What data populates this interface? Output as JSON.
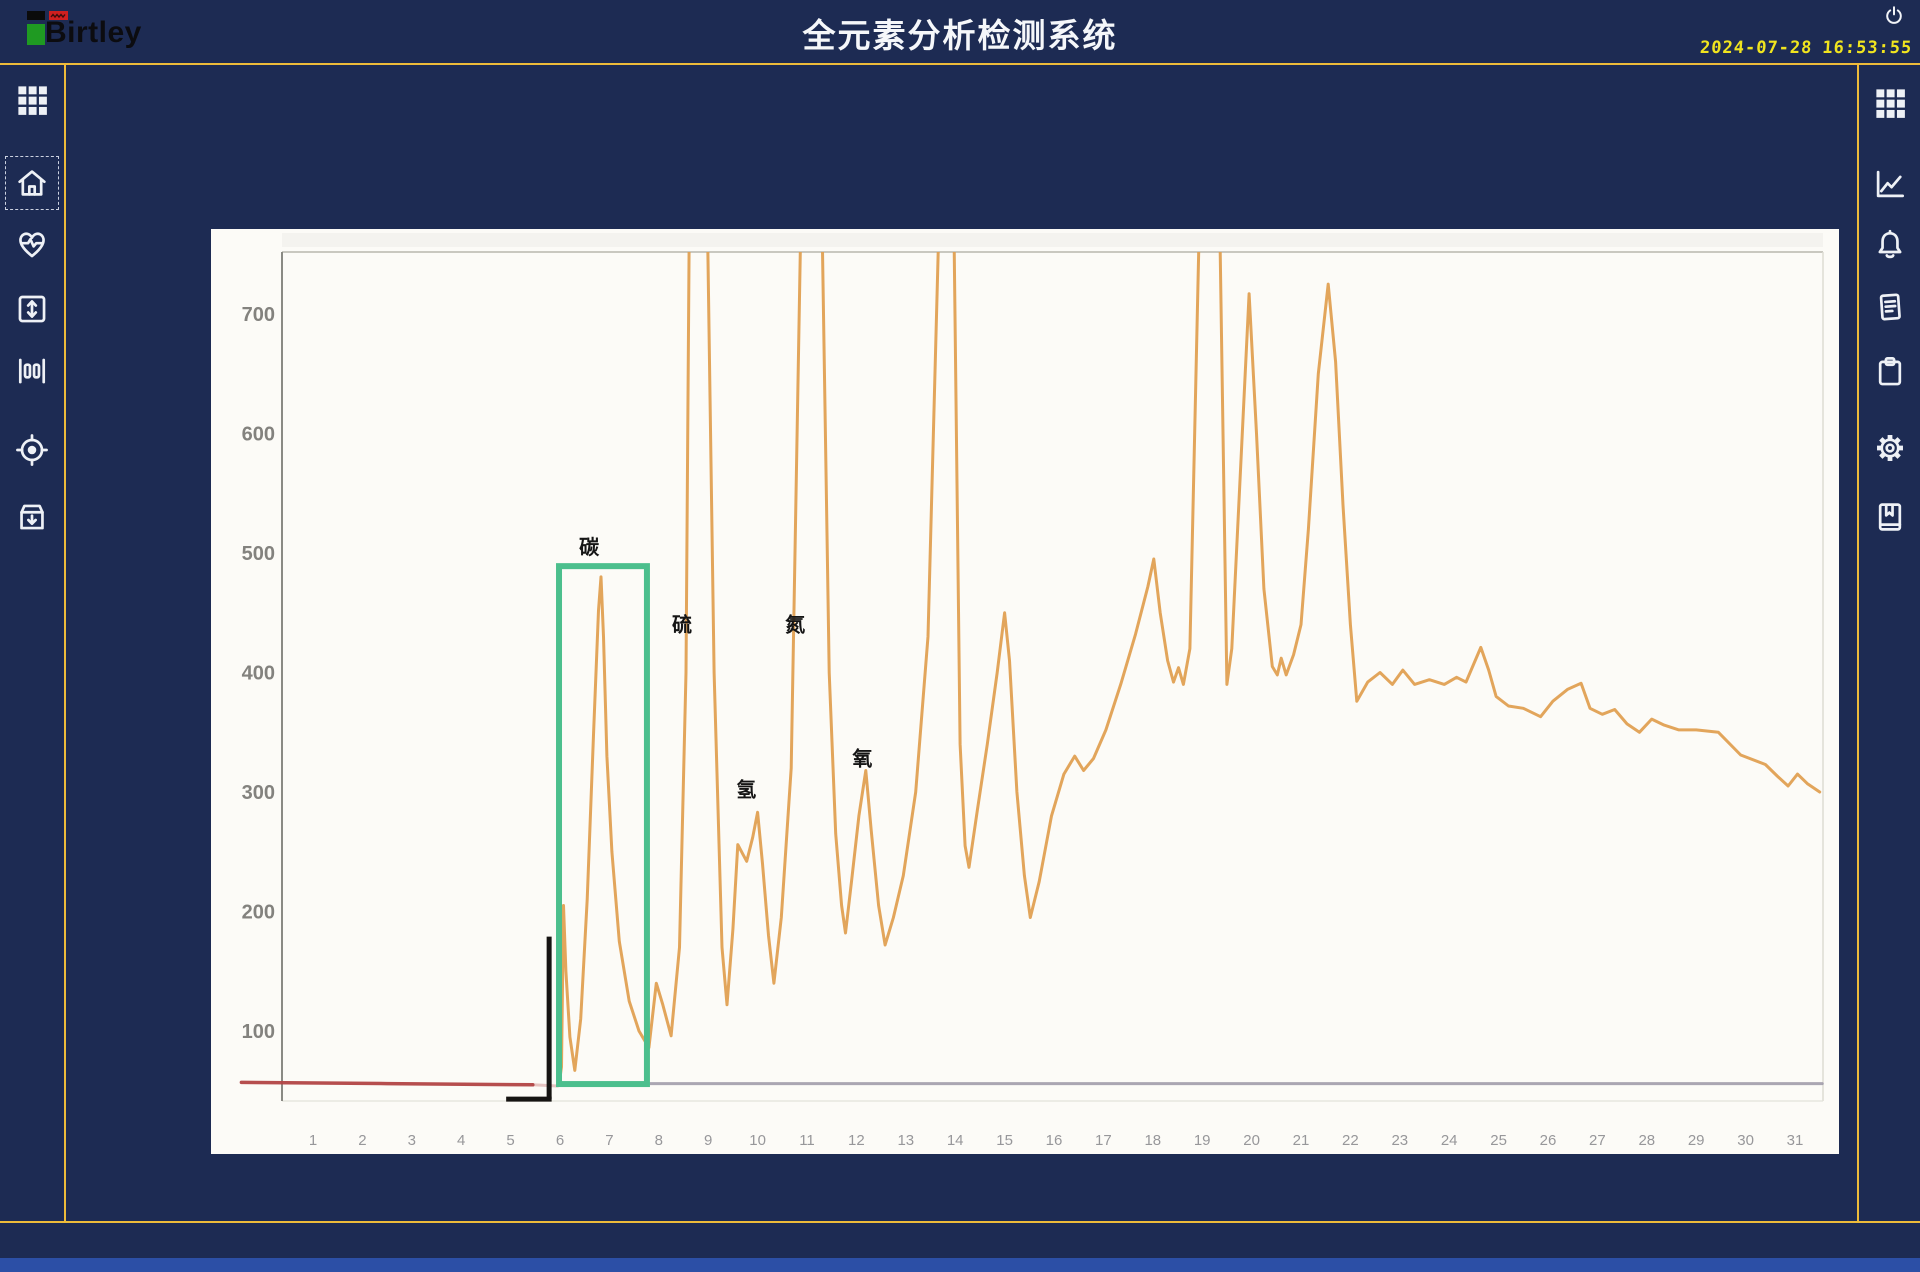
{
  "header": {
    "logo_text": "Birtley",
    "title": "全元素分析检测系统",
    "date": "2024-07-28",
    "time": "16:53:55"
  },
  "left_sidebar": {
    "items": [
      {
        "icon": "grid-menu"
      },
      {
        "icon": "home",
        "active": true
      },
      {
        "icon": "heart-pulse"
      },
      {
        "icon": "expand-vertical"
      },
      {
        "icon": "columns"
      },
      {
        "icon": "target"
      },
      {
        "icon": "archive-in"
      }
    ]
  },
  "right_sidebar": {
    "items": [
      {
        "icon": "grid-menu"
      },
      {
        "icon": "line-chart"
      },
      {
        "icon": "bell"
      },
      {
        "icon": "report"
      },
      {
        "icon": "clipboard"
      },
      {
        "icon": "gear"
      },
      {
        "icon": "book-bookmark"
      }
    ]
  },
  "chart_data": {
    "type": "line",
    "title": "",
    "xlabel": "",
    "ylabel": "",
    "x_ticks": [
      1,
      2,
      3,
      4,
      5,
      6,
      7,
      8,
      9,
      10,
      11,
      12,
      13,
      14,
      15,
      16,
      17,
      18,
      19,
      20,
      21,
      22,
      23,
      24,
      25,
      26,
      27,
      28,
      29,
      30,
      31
    ],
    "y_ticks": [
      100,
      200,
      300,
      400,
      500,
      600,
      700
    ],
    "xlim": [
      0.37,
      31.56
    ],
    "ylim": [
      41,
      752
    ],
    "grid": false,
    "legend": "none",
    "note": "scanned chromatogram; peaks at x≈8.8, 11.1, 13.8, 19.2 are clipped above the 700 axis (stored as 790)",
    "colors": {
      "signal": "#e0a052",
      "baseline_red": "#b24444",
      "baseline_gray": "#9b97a6"
    },
    "series": [
      {
        "name": "baseline-left-red",
        "color": "#b24444",
        "width": 3.5,
        "opacity": 0.95,
        "points": [
          [
            -0.45,
            57
          ],
          [
            2.5,
            56
          ],
          [
            5.45,
            55
          ]
        ]
      },
      {
        "name": "baseline-left-red-fade",
        "color": "#b24444",
        "width": 3,
        "opacity": 0.3,
        "points": [
          [
            5.45,
            55
          ],
          [
            5.95,
            54
          ]
        ]
      },
      {
        "name": "baseline-right-gray",
        "color": "#9b97a6",
        "width": 3,
        "opacity": 0.85,
        "points": [
          [
            7.78,
            56
          ],
          [
            31.55,
            56
          ]
        ]
      },
      {
        "name": "signal",
        "color": "#e0a052",
        "width": 3,
        "opacity": 0.95,
        "points": [
          [
            5.98,
            55
          ],
          [
            6.03,
            70
          ],
          [
            6.07,
            205
          ],
          [
            6.12,
            150
          ],
          [
            6.2,
            95
          ],
          [
            6.3,
            67
          ],
          [
            6.42,
            110
          ],
          [
            6.55,
            210
          ],
          [
            6.68,
            350
          ],
          [
            6.78,
            452
          ],
          [
            6.83,
            480
          ],
          [
            6.88,
            430
          ],
          [
            6.95,
            330
          ],
          [
            7.05,
            250
          ],
          [
            7.2,
            175
          ],
          [
            7.4,
            125
          ],
          [
            7.6,
            100
          ],
          [
            7.8,
            86
          ],
          [
            7.95,
            140
          ],
          [
            8.08,
            122
          ],
          [
            8.25,
            96
          ],
          [
            8.42,
            170
          ],
          [
            8.55,
            400
          ],
          [
            8.62,
            790
          ],
          [
            8.98,
            790
          ],
          [
            9.12,
            400
          ],
          [
            9.28,
            170
          ],
          [
            9.38,
            122
          ],
          [
            9.5,
            185
          ],
          [
            9.6,
            256
          ],
          [
            9.7,
            248
          ],
          [
            9.78,
            242
          ],
          [
            9.9,
            262
          ],
          [
            10.0,
            283
          ],
          [
            10.1,
            240
          ],
          [
            10.22,
            180
          ],
          [
            10.33,
            140
          ],
          [
            10.48,
            195
          ],
          [
            10.68,
            320
          ],
          [
            10.88,
            790
          ],
          [
            11.3,
            790
          ],
          [
            11.45,
            400
          ],
          [
            11.58,
            265
          ],
          [
            11.7,
            205
          ],
          [
            11.78,
            182
          ],
          [
            11.9,
            225
          ],
          [
            12.05,
            280
          ],
          [
            12.19,
            318
          ],
          [
            12.3,
            268
          ],
          [
            12.45,
            205
          ],
          [
            12.58,
            172
          ],
          [
            12.75,
            195
          ],
          [
            12.95,
            230
          ],
          [
            13.2,
            300
          ],
          [
            13.45,
            430
          ],
          [
            13.68,
            790
          ],
          [
            13.97,
            790
          ],
          [
            14.1,
            340
          ],
          [
            14.2,
            255
          ],
          [
            14.28,
            237
          ],
          [
            14.45,
            285
          ],
          [
            14.65,
            340
          ],
          [
            14.85,
            400
          ],
          [
            15.0,
            450
          ],
          [
            15.1,
            410
          ],
          [
            15.25,
            300
          ],
          [
            15.4,
            230
          ],
          [
            15.52,
            195
          ],
          [
            15.7,
            225
          ],
          [
            15.95,
            280
          ],
          [
            16.2,
            315
          ],
          [
            16.42,
            330
          ],
          [
            16.6,
            318
          ],
          [
            16.8,
            328
          ],
          [
            17.05,
            352
          ],
          [
            17.35,
            390
          ],
          [
            17.65,
            432
          ],
          [
            17.9,
            472
          ],
          [
            18.02,
            495
          ],
          [
            18.15,
            450
          ],
          [
            18.3,
            410
          ],
          [
            18.42,
            392
          ],
          [
            18.52,
            404
          ],
          [
            18.62,
            390
          ],
          [
            18.75,
            420
          ],
          [
            18.95,
            790
          ],
          [
            19.35,
            790
          ],
          [
            19.5,
            390
          ],
          [
            19.6,
            420
          ],
          [
            19.95,
            717
          ],
          [
            20.1,
            600
          ],
          [
            20.25,
            470
          ],
          [
            20.42,
            405
          ],
          [
            20.52,
            398
          ],
          [
            20.6,
            412
          ],
          [
            20.7,
            398
          ],
          [
            20.85,
            415
          ],
          [
            21.0,
            440
          ],
          [
            21.15,
            520
          ],
          [
            21.35,
            650
          ],
          [
            21.55,
            725
          ],
          [
            21.7,
            660
          ],
          [
            21.85,
            540
          ],
          [
            22.0,
            440
          ],
          [
            22.13,
            376
          ],
          [
            22.35,
            392
          ],
          [
            22.6,
            400
          ],
          [
            22.85,
            390
          ],
          [
            23.06,
            402
          ],
          [
            23.3,
            390
          ],
          [
            23.6,
            394
          ],
          [
            23.9,
            390
          ],
          [
            24.15,
            396
          ],
          [
            24.34,
            392
          ],
          [
            24.64,
            421
          ],
          [
            24.8,
            402
          ],
          [
            24.95,
            380
          ],
          [
            25.2,
            372
          ],
          [
            25.5,
            370
          ],
          [
            25.85,
            363
          ],
          [
            26.1,
            376
          ],
          [
            26.4,
            386
          ],
          [
            26.67,
            391
          ],
          [
            26.85,
            370
          ],
          [
            27.1,
            365
          ],
          [
            27.35,
            369
          ],
          [
            27.6,
            357
          ],
          [
            27.85,
            350
          ],
          [
            28.1,
            361
          ],
          [
            28.35,
            356
          ],
          [
            28.65,
            352
          ],
          [
            29.0,
            352
          ],
          [
            29.45,
            350
          ],
          [
            29.9,
            331
          ],
          [
            30.4,
            323
          ],
          [
            30.65,
            313
          ],
          [
            30.86,
            305
          ],
          [
            31.05,
            315
          ],
          [
            31.25,
            307
          ],
          [
            31.5,
            300
          ]
        ]
      }
    ],
    "annotations": {
      "element_labels": [
        {
          "text": "碳",
          "x": 6.59,
          "y": 505
        },
        {
          "text": "硫",
          "x": 8.47,
          "y": 440
        },
        {
          "text": "氢",
          "x": 9.77,
          "y": 302
        },
        {
          "text": "氮",
          "x": 10.76,
          "y": 440
        },
        {
          "text": "氧",
          "x": 12.12,
          "y": 328
        }
      ],
      "highlight_box": {
        "x1": 5.98,
        "x2": 7.76,
        "y1": 55.6,
        "y2": 489,
        "color": "#4cbf8d"
      },
      "bracket": {
        "x": 5.78,
        "y_top": 179,
        "y_bottom": 43,
        "x_left": 4.91,
        "color": "#161412"
      }
    }
  },
  "colors": {
    "background": "#1d2b53",
    "accent_yellow": "#edbb3a",
    "clock_yellow": "#f0e41f",
    "panel": "#fcfbf7",
    "highlight_green": "#4cbf8d"
  }
}
